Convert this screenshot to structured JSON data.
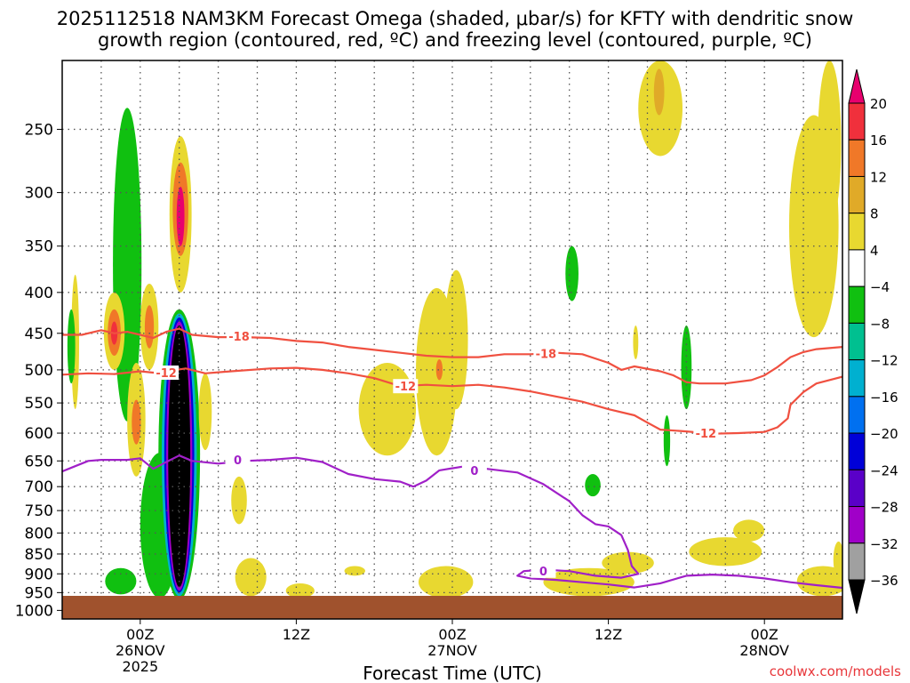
{
  "chart_data": {
    "type": "heatmap",
    "title_line1": "2025112518 NAM3KM Forecast Omega (shaded, μbar/s) for KFTY with dendritic snow",
    "title_line2": "growth region (contoured, red, ºC) and freezing level (contoured, purple, ºC)",
    "xlabel": "Forecast Time (UTC)",
    "ylabel": "",
    "credit": "coolwx.com/models",
    "y_axis": {
      "scale": "log-pressure",
      "range_hpa": [
        1025,
        205
      ],
      "ticks": [
        250,
        300,
        350,
        400,
        450,
        500,
        550,
        600,
        650,
        700,
        750,
        800,
        850,
        900,
        950,
        1000
      ],
      "tick_labels": [
        "250",
        "300",
        "350",
        "400",
        "450",
        "500",
        "550",
        "600",
        "650",
        "700",
        "750",
        "800",
        "850",
        "900",
        "950",
        "1000"
      ]
    },
    "x_axis": {
      "units": "hours from 2025-11-25 18Z",
      "range": [
        0,
        60
      ],
      "ticks": [
        {
          "h": 6,
          "labels": [
            "00Z",
            "26NOV",
            "2025"
          ]
        },
        {
          "h": 18,
          "labels": [
            "12Z"
          ]
        },
        {
          "h": 30,
          "labels": [
            "00Z",
            "27NOV"
          ]
        },
        {
          "h": 42,
          "labels": [
            "12Z"
          ]
        },
        {
          "h": 54,
          "labels": [
            "00Z",
            "28NOV"
          ]
        }
      ],
      "minor_grid": [
        3,
        9,
        12,
        15,
        21,
        24,
        27,
        33,
        36,
        39,
        45,
        48,
        51,
        57
      ]
    },
    "colorbar": {
      "labels": [
        "20",
        "16",
        "12",
        "8",
        "4",
        "−4",
        "−8",
        "−12",
        "−16",
        "−20",
        "−24",
        "−28",
        "−32",
        "−36"
      ],
      "bins": [
        {
          "color": "#e8006e"
        },
        {
          "color": "#f0303c"
        },
        {
          "color": "#f07828"
        },
        {
          "color": "#e0aa28"
        },
        {
          "color": "#e8d830"
        },
        {
          "color": "#ffffff"
        },
        {
          "color": "#10c010"
        },
        {
          "color": "#00c090"
        },
        {
          "color": "#00b0d0"
        },
        {
          "color": "#0070f0"
        },
        {
          "color": "#0000d8"
        },
        {
          "color": "#5a00c8"
        },
        {
          "color": "#a000c8"
        },
        {
          "color": "#a0a0a0"
        },
        {
          "color": "#000000"
        }
      ]
    },
    "omega_regions": [
      {
        "t": 1.0,
        "p": 520,
        "dt": 0.3,
        "dp0": 560,
        "dp1": 380,
        "color": "#e8d830"
      },
      {
        "t": 0.7,
        "p": 460,
        "dt": 0.3,
        "dp0": 520,
        "dp1": 420,
        "color": "#10c010"
      },
      {
        "t": 5.0,
        "p": 340,
        "dt": 1.1,
        "dp0": 580,
        "dp1": 235,
        "color": "#10c010"
      },
      {
        "t": 4.0,
        "p": 455,
        "dt": 0.8,
        "dp0": 500,
        "dp1": 400,
        "color": "#e8d830"
      },
      {
        "t": 4.0,
        "p": 450,
        "dt": 0.5,
        "dp0": 480,
        "dp1": 420,
        "color": "#f07828"
      },
      {
        "t": 4.0,
        "p": 450,
        "dt": 0.25,
        "dp0": 465,
        "dp1": 435,
        "color": "#f0303c"
      },
      {
        "t": 5.7,
        "p": 545,
        "dt": 0.7,
        "dp0": 680,
        "dp1": 490,
        "color": "#e8d830"
      },
      {
        "t": 5.7,
        "p": 580,
        "dt": 0.35,
        "dp0": 620,
        "dp1": 545,
        "color": "#f07828"
      },
      {
        "t": 6.7,
        "p": 440,
        "dt": 0.7,
        "dp0": 500,
        "dp1": 390,
        "color": "#e8d830"
      },
      {
        "t": 6.7,
        "p": 440,
        "dt": 0.35,
        "dp0": 470,
        "dp1": 415,
        "color": "#f07828"
      },
      {
        "t": 9.1,
        "p": 325,
        "dt": 0.85,
        "dp0": 400,
        "dp1": 255,
        "color": "#e8d830"
      },
      {
        "t": 9.1,
        "p": 315,
        "dt": 0.6,
        "dp0": 360,
        "dp1": 275,
        "color": "#f07828"
      },
      {
        "t": 9.1,
        "p": 325,
        "dt": 0.3,
        "dp0": 350,
        "dp1": 295,
        "color": "#e8006e"
      },
      {
        "t": 7.5,
        "p": 810,
        "dt": 1.5,
        "dp0": 965,
        "dp1": 635,
        "color": "#10c010"
      },
      {
        "t": 9.0,
        "p": 700,
        "dt": 1.6,
        "dp0": 970,
        "dp1": 420,
        "color": "#10c010"
      },
      {
        "t": 9.0,
        "p": 700,
        "dt": 1.35,
        "dp0": 960,
        "dp1": 425,
        "color": "#00b0d0"
      },
      {
        "t": 9.0,
        "p": 700,
        "dt": 1.15,
        "dp0": 950,
        "dp1": 430,
        "color": "#0000d8"
      },
      {
        "t": 9.0,
        "p": 700,
        "dt": 1.0,
        "dp0": 945,
        "dp1": 435,
        "color": "#a000c8"
      },
      {
        "t": 9.0,
        "p": 690,
        "dt": 0.85,
        "dp0": 935,
        "dp1": 440,
        "color": "#000000"
      },
      {
        "t": 11.0,
        "p": 560,
        "dt": 0.5,
        "dp0": 630,
        "dp1": 505,
        "color": "#e8d830"
      },
      {
        "t": 4.5,
        "p": 910,
        "dt": 1.2,
        "dp0": 955,
        "dp1": 885,
        "color": "#10c010"
      },
      {
        "t": 13.6,
        "p": 725,
        "dt": 0.6,
        "dp0": 780,
        "dp1": 680,
        "color": "#e8d830"
      },
      {
        "t": 14.5,
        "p": 910,
        "dt": 1.2,
        "dp0": 960,
        "dp1": 860,
        "color": "#e8d830"
      },
      {
        "t": 18.3,
        "p": 945,
        "dt": 1.1,
        "dp0": 965,
        "dp1": 925,
        "color": "#e8d830"
      },
      {
        "t": 22.5,
        "p": 890,
        "dt": 0.8,
        "dp0": 905,
        "dp1": 880,
        "color": "#e8d830"
      },
      {
        "t": 25.0,
        "p": 560,
        "dt": 2.2,
        "dp0": 640,
        "dp1": 490,
        "color": "#e8d830"
      },
      {
        "t": 28.8,
        "p": 470,
        "dt": 1.6,
        "dp0": 640,
        "dp1": 395,
        "color": "#e8d830"
      },
      {
        "t": 29.0,
        "p": 500,
        "dt": 0.25,
        "dp0": 515,
        "dp1": 485,
        "color": "#f07828"
      },
      {
        "t": 30.3,
        "p": 440,
        "dt": 0.9,
        "dp0": 560,
        "dp1": 375,
        "color": "#e8d830"
      },
      {
        "t": 29.5,
        "p": 925,
        "dt": 2.1,
        "dp0": 965,
        "dp1": 880,
        "color": "#e8d830"
      },
      {
        "t": 39.2,
        "p": 380,
        "dt": 0.5,
        "dp0": 410,
        "dp1": 350,
        "color": "#10c010"
      },
      {
        "t": 40.5,
        "p": 920,
        "dt": 3.5,
        "dp0": 960,
        "dp1": 885,
        "color": "#e8d830"
      },
      {
        "t": 43.5,
        "p": 870,
        "dt": 2.0,
        "dp0": 900,
        "dp1": 845,
        "color": "#e8d830"
      },
      {
        "t": 40.8,
        "p": 695,
        "dt": 0.6,
        "dp0": 720,
        "dp1": 675,
        "color": "#10c010"
      },
      {
        "t": 46.0,
        "p": 235,
        "dt": 1.7,
        "dp0": 270,
        "dp1": 205,
        "color": "#e8d830"
      },
      {
        "t": 45.9,
        "p": 225,
        "dt": 0.4,
        "dp0": 240,
        "dp1": 210,
        "color": "#e0aa28"
      },
      {
        "t": 44.1,
        "p": 460,
        "dt": 0.2,
        "dp0": 485,
        "dp1": 440,
        "color": "#e8d830"
      },
      {
        "t": 48.0,
        "p": 470,
        "dt": 0.4,
        "dp0": 560,
        "dp1": 440,
        "color": "#10c010"
      },
      {
        "t": 46.5,
        "p": 610,
        "dt": 0.25,
        "dp0": 660,
        "dp1": 570,
        "color": "#10c010"
      },
      {
        "t": 51.0,
        "p": 840,
        "dt": 2.8,
        "dp0": 880,
        "dp1": 810,
        "color": "#e8d830"
      },
      {
        "t": 52.8,
        "p": 790,
        "dt": 1.2,
        "dp0": 820,
        "dp1": 770,
        "color": "#e8d830"
      },
      {
        "t": 57.8,
        "p": 310,
        "dt": 1.9,
        "dp0": 455,
        "dp1": 240,
        "color": "#e8d830"
      },
      {
        "t": 59.0,
        "p": 230,
        "dt": 0.9,
        "dp0": 330,
        "dp1": 205,
        "color": "#e8d830"
      },
      {
        "t": 58.5,
        "p": 920,
        "dt": 2.0,
        "dp0": 960,
        "dp1": 880,
        "color": "#e8d830"
      },
      {
        "t": 59.7,
        "p": 860,
        "dt": 0.4,
        "dp0": 910,
        "dp1": 820,
        "color": "#e8d830"
      }
    ],
    "contours": [
      {
        "label": "-18",
        "color": "#f05040",
        "points": [
          [
            0,
            452
          ],
          [
            1.5,
            452
          ],
          [
            3,
            446
          ],
          [
            4,
            450
          ],
          [
            5,
            448
          ],
          [
            6,
            452
          ],
          [
            7,
            456
          ],
          [
            8,
            448
          ],
          [
            9,
            444
          ],
          [
            10,
            452
          ],
          [
            12,
            455
          ],
          [
            14,
            455
          ],
          [
            16,
            456
          ],
          [
            18,
            460
          ],
          [
            20,
            462
          ],
          [
            22,
            468
          ],
          [
            24,
            472
          ],
          [
            26,
            476
          ],
          [
            28,
            480
          ],
          [
            30,
            482
          ],
          [
            32,
            482
          ],
          [
            34,
            478
          ],
          [
            36,
            478
          ],
          [
            38,
            476
          ],
          [
            40,
            478
          ],
          [
            42,
            490
          ],
          [
            43,
            500
          ],
          [
            44,
            495
          ],
          [
            46,
            502
          ],
          [
            47,
            508
          ],
          [
            48,
            518
          ],
          [
            49,
            520
          ],
          [
            51,
            520
          ],
          [
            53,
            515
          ],
          [
            54,
            508
          ],
          [
            55,
            496
          ],
          [
            56,
            482
          ],
          [
            57,
            475
          ],
          [
            58,
            471
          ],
          [
            60,
            468
          ]
        ],
        "label_at": [
          [
            13.6,
            454
          ],
          [
            37.2,
            477
          ]
        ]
      },
      {
        "label": "-12",
        "color": "#f05040",
        "points": [
          [
            0,
            507
          ],
          [
            2,
            505
          ],
          [
            4,
            506
          ],
          [
            6,
            502
          ],
          [
            7,
            504
          ],
          [
            8,
            502
          ],
          [
            9.5,
            498
          ],
          [
            11,
            505
          ],
          [
            13,
            502
          ],
          [
            16,
            498
          ],
          [
            18,
            497
          ],
          [
            20,
            500
          ],
          [
            22,
            505
          ],
          [
            24,
            512
          ],
          [
            26,
            524
          ],
          [
            28,
            522
          ],
          [
            30,
            524
          ],
          [
            32,
            522
          ],
          [
            34,
            526
          ],
          [
            36,
            532
          ],
          [
            38,
            540
          ],
          [
            40,
            548
          ],
          [
            42,
            560
          ],
          [
            44,
            570
          ],
          [
            45,
            582
          ],
          [
            46,
            594
          ],
          [
            48,
            597
          ],
          [
            50,
            601
          ],
          [
            52,
            600
          ],
          [
            54,
            598
          ],
          [
            55,
            590
          ],
          [
            55.8,
            575
          ],
          [
            56,
            553
          ],
          [
            57,
            533
          ],
          [
            58,
            520
          ],
          [
            60,
            510
          ]
        ],
        "label_at": [
          [
            8.0,
            504
          ],
          [
            26.4,
            524
          ],
          [
            49.5,
            600
          ]
        ]
      },
      {
        "label": "0",
        "color": "#a020c8",
        "points": [
          [
            0,
            670
          ],
          [
            1,
            660
          ],
          [
            2,
            650
          ],
          [
            3,
            648
          ],
          [
            5,
            648
          ],
          [
            6,
            645
          ],
          [
            7,
            665
          ],
          [
            8,
            652
          ],
          [
            9,
            640
          ],
          [
            10,
            650
          ],
          [
            12,
            655
          ],
          [
            14,
            650
          ],
          [
            16,
            648
          ],
          [
            18,
            644
          ],
          [
            20,
            652
          ],
          [
            22,
            675
          ],
          [
            24,
            685
          ],
          [
            26,
            690
          ],
          [
            27,
            700
          ],
          [
            28,
            688
          ],
          [
            29,
            668
          ],
          [
            31,
            660
          ],
          [
            33,
            666
          ],
          [
            35,
            672
          ],
          [
            37,
            695
          ],
          [
            39,
            730
          ],
          [
            40,
            760
          ],
          [
            41,
            780
          ],
          [
            42,
            785
          ],
          [
            43,
            805
          ],
          [
            43.5,
            840
          ],
          [
            43.8,
            880
          ],
          [
            44.3,
            900
          ],
          [
            43,
            910
          ],
          [
            41,
            905
          ],
          [
            39,
            893
          ],
          [
            37,
            889
          ],
          [
            35.5,
            893
          ],
          [
            35,
            905
          ],
          [
            36,
            912
          ],
          [
            38,
            916
          ],
          [
            40,
            922
          ],
          [
            42,
            928
          ],
          [
            44,
            936
          ],
          [
            46,
            925
          ],
          [
            48,
            905
          ],
          [
            50,
            902
          ],
          [
            52,
            905
          ],
          [
            54,
            912
          ],
          [
            56,
            922
          ],
          [
            58,
            930
          ],
          [
            60,
            937
          ]
        ],
        "label_at": [
          [
            13.5,
            648
          ],
          [
            31.7,
            668
          ],
          [
            37.0,
            892
          ]
        ]
      }
    ]
  },
  "colors": {
    "gridline": "#555555",
    "ground": "#a0522d",
    "credit": "#e8363a"
  }
}
